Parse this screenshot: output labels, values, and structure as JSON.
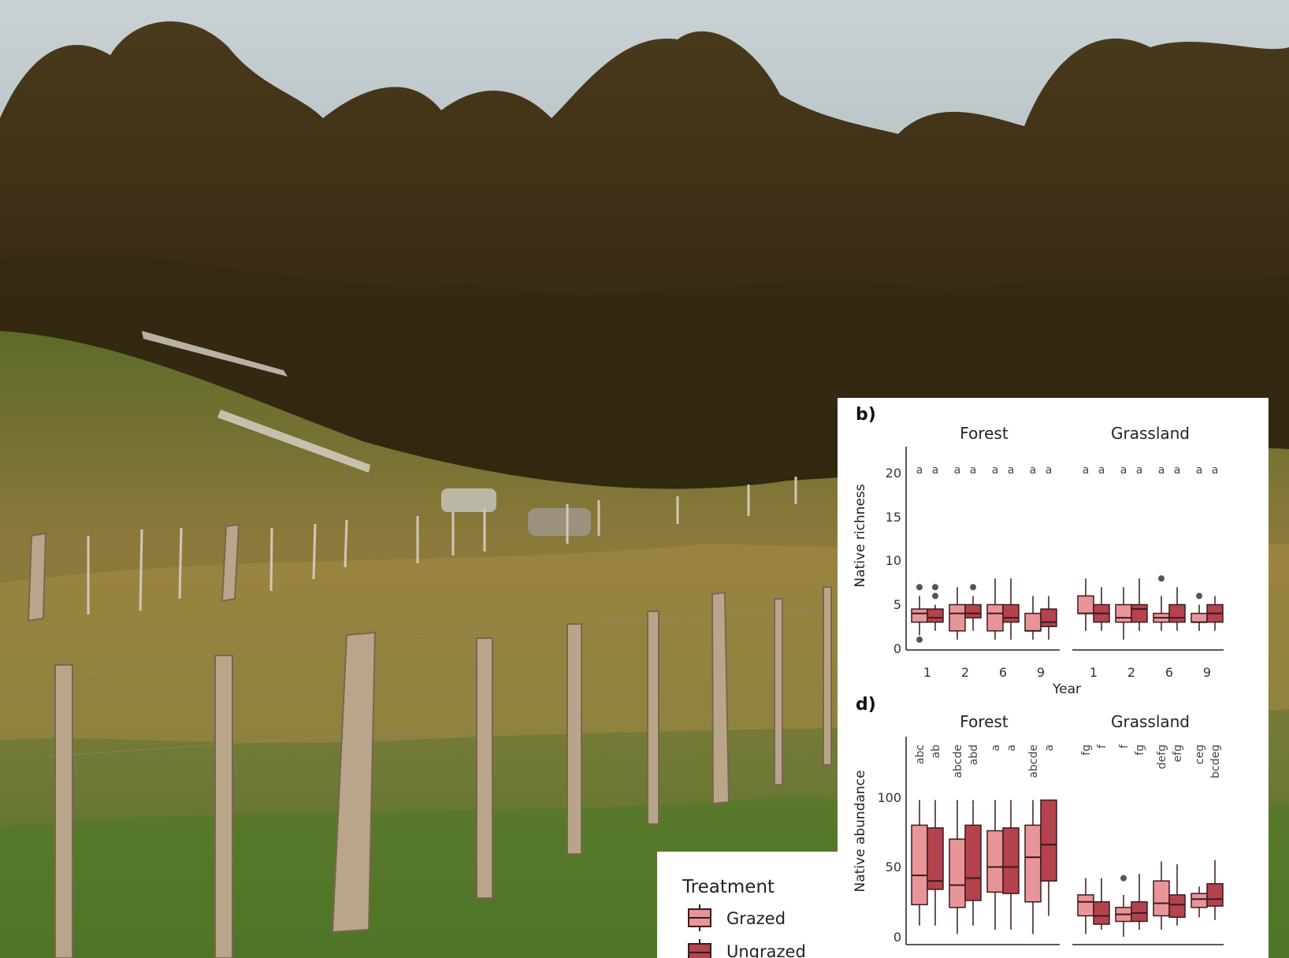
{
  "colors": {
    "grazed_fill": "#e8959a",
    "ungrazed_fill": "#b4434e",
    "box_stroke": "#3a1a1e",
    "outlier": "#555555"
  },
  "photo": {
    "subject": "fenced grassland plot in front of forest"
  },
  "panels": [
    {
      "label": "b)",
      "facets": [
        "Forest",
        "Grassland"
      ],
      "ylabel": "Native richness",
      "xlabel": "Year",
      "xticks": [
        "1",
        "2",
        "6",
        "9"
      ],
      "yticks": [
        "0",
        "5",
        "10",
        "15",
        "20"
      ]
    },
    {
      "label": "d)",
      "facets": [
        "Forest",
        "Grassland"
      ],
      "ylabel": "Native abundance",
      "yticks": [
        "0",
        "50",
        "100"
      ]
    }
  ],
  "legend": {
    "title": "Treatment",
    "items": [
      "Grazed",
      "Ungrazed"
    ]
  },
  "chart_data": [
    {
      "type": "box",
      "ylabel": "Native richness",
      "xlabel": "Year",
      "ylim": [
        0,
        22
      ],
      "facets": [
        "Forest",
        "Grassland"
      ],
      "categories": [
        "1",
        "2",
        "6",
        "9"
      ],
      "series": [
        {
          "name": "Grazed",
          "facet": "Forest",
          "boxes": [
            [
              1.5,
              3,
              4,
              4.5,
              6
            ],
            [
              1,
              2,
              4,
              5,
              7
            ],
            [
              1,
              2,
              4,
              5,
              8
            ],
            [
              1,
              2,
              2,
              4,
              6
            ]
          ],
          "outliers": [
            [
              7,
              1
            ],
            [],
            [],
            []
          ],
          "letters": [
            "a",
            "a",
            "a",
            "a"
          ]
        },
        {
          "name": "Ungrazed",
          "facet": "Forest",
          "boxes": [
            [
              2,
              3,
              3.5,
              4.5,
              5
            ],
            [
              2,
              3.5,
              4,
              5,
              6
            ],
            [
              1,
              3,
              3.5,
              5,
              8
            ],
            [
              1,
              2.5,
              3,
              4.5,
              6
            ]
          ],
          "outliers": [
            [
              7,
              6
            ],
            [
              7
            ],
            [],
            []
          ],
          "letters": [
            "a",
            "a",
            "a",
            "a"
          ]
        },
        {
          "name": "Grazed",
          "facet": "Grassland",
          "boxes": [
            [
              2,
              4,
              4,
              6,
              8
            ],
            [
              1,
              3,
              3.5,
              5,
              7
            ],
            [
              2,
              3,
              3.5,
              4,
              6
            ],
            [
              2,
              3,
              3,
              4,
              5
            ]
          ],
          "outliers": [
            [],
            [],
            [
              8
            ],
            [
              6
            ]
          ],
          "letters": [
            "a",
            "a",
            "a",
            "a"
          ]
        },
        {
          "name": "Ungrazed",
          "facet": "Grassland",
          "boxes": [
            [
              2,
              3,
              4,
              5,
              7
            ],
            [
              2,
              3,
              4.5,
              5,
              8
            ],
            [
              2,
              3,
              3.5,
              5,
              7
            ],
            [
              2,
              3,
              4,
              5,
              6
            ]
          ],
          "outliers": [
            [],
            [],
            [],
            []
          ],
          "letters": [
            "a",
            "a",
            "a",
            "a"
          ]
        }
      ]
    },
    {
      "type": "box",
      "ylabel": "Native abundance",
      "ylim": [
        0,
        135
      ],
      "facets": [
        "Forest",
        "Grassland"
      ],
      "categories": [
        "1",
        "2",
        "6",
        "9"
      ],
      "series": [
        {
          "name": "Grazed",
          "facet": "Forest",
          "boxes": [
            [
              8,
              23,
              44,
              80,
              98
            ],
            [
              2,
              21,
              37,
              70,
              98
            ],
            [
              5,
              32,
              50,
              76,
              98
            ],
            [
              2,
              25,
              57,
              80,
              98
            ]
          ],
          "outliers": [
            [],
            [],
            [],
            []
          ],
          "letters": [
            "abc",
            "abcde",
            "a",
            "abcde"
          ]
        },
        {
          "name": "Ungrazed",
          "facet": "Forest",
          "boxes": [
            [
              8,
              34,
              40,
              78,
              98
            ],
            [
              8,
              26,
              42,
              80,
              98
            ],
            [
              5,
              31,
              50,
              78,
              98
            ],
            [
              15,
              40,
              66,
              98,
              98
            ]
          ],
          "outliers": [
            [],
            [],
            [],
            []
          ],
          "letters": [
            "ab",
            "abd",
            "a",
            "a"
          ]
        },
        {
          "name": "Grazed",
          "facet": "Grassland",
          "boxes": [
            [
              2,
              15,
              25,
              30,
              42
            ],
            [
              0,
              11,
              16,
              21,
              30
            ],
            [
              5,
              15,
              24,
              40,
              54
            ],
            [
              14,
              21,
              27,
              31,
              36
            ]
          ],
          "outliers": [
            [],
            [
              42
            ],
            [],
            []
          ],
          "letters": [
            "fg",
            "f",
            "defg",
            "ceg"
          ]
        },
        {
          "name": "Ungrazed",
          "facet": "Grassland",
          "boxes": [
            [
              5,
              9,
              15,
              25,
              42
            ],
            [
              5,
              11,
              17,
              25,
              45
            ],
            [
              8,
              14,
              23,
              30,
              52
            ],
            [
              12,
              22,
              27,
              38,
              55
            ]
          ],
          "outliers": [
            [],
            [],
            [],
            []
          ],
          "letters": [
            "f",
            "fg",
            "efg",
            "bcdeg"
          ]
        }
      ]
    }
  ]
}
